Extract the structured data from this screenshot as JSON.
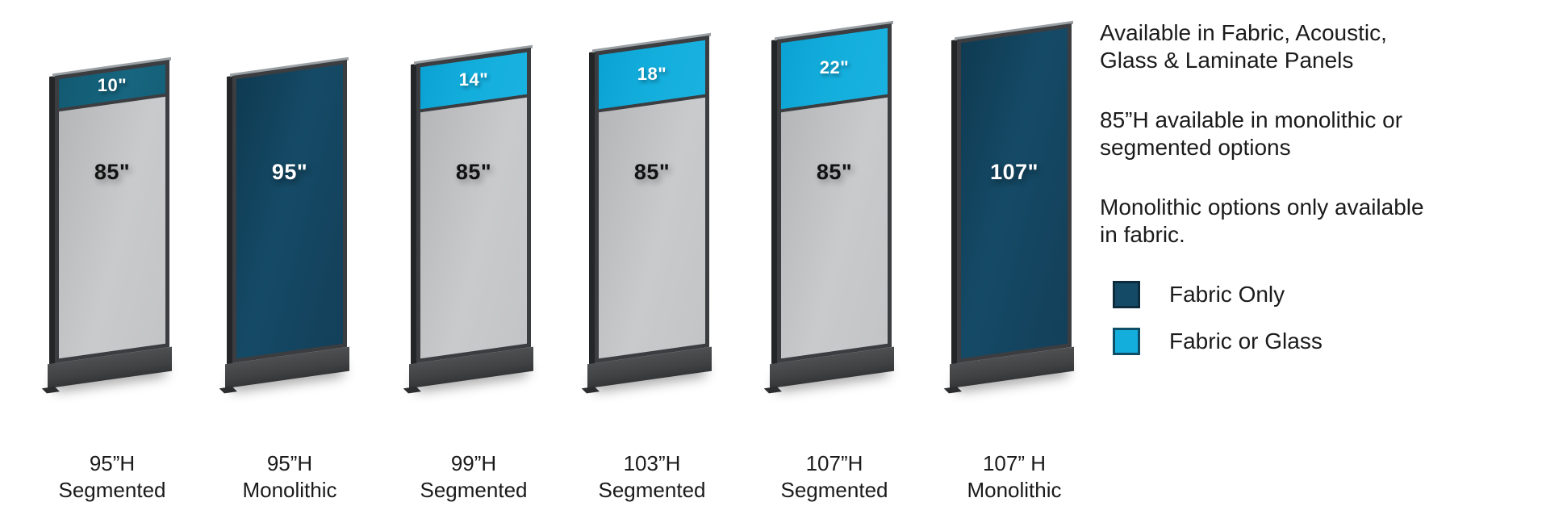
{
  "colors": {
    "navy": "#154a66",
    "cyan": "#14aedd",
    "teal": "#17657f",
    "gray": "#c7c8ca",
    "frame": "#3b3d40"
  },
  "panels": [
    {
      "type": "segmented",
      "top_label": "10\"",
      "main_label": "85\"",
      "caption_line1": "95”H",
      "caption_line2": "Segmented"
    },
    {
      "type": "monolithic",
      "main_label": "95\"",
      "caption_line1": "95”H",
      "caption_line2": "Monolithic"
    },
    {
      "type": "segmented",
      "top_label": "14\"",
      "main_label": "85\"",
      "caption_line1": "99”H",
      "caption_line2": "Segmented"
    },
    {
      "type": "segmented",
      "top_label": "18\"",
      "main_label": "85\"",
      "caption_line1": "103”H",
      "caption_line2": "Segmented"
    },
    {
      "type": "segmented",
      "top_label": "22\"",
      "main_label": "85\"",
      "caption_line1": "107”H",
      "caption_line2": "Segmented"
    },
    {
      "type": "monolithic",
      "main_label": "107\"",
      "caption_line1": "107” H",
      "caption_line2": "Monolithic"
    }
  ],
  "notes": [
    {
      "line1": "Available in Fabric, Acoustic,",
      "line2": "Glass & Laminate Panels"
    },
    {
      "line1": "85”H available in monolithic or",
      "line2": "segmented options"
    },
    {
      "line1": "Monolithic options only available",
      "line2": "in fabric."
    }
  ],
  "legend": [
    {
      "label": "Fabric Only"
    },
    {
      "label": "Fabric or Glass"
    }
  ]
}
